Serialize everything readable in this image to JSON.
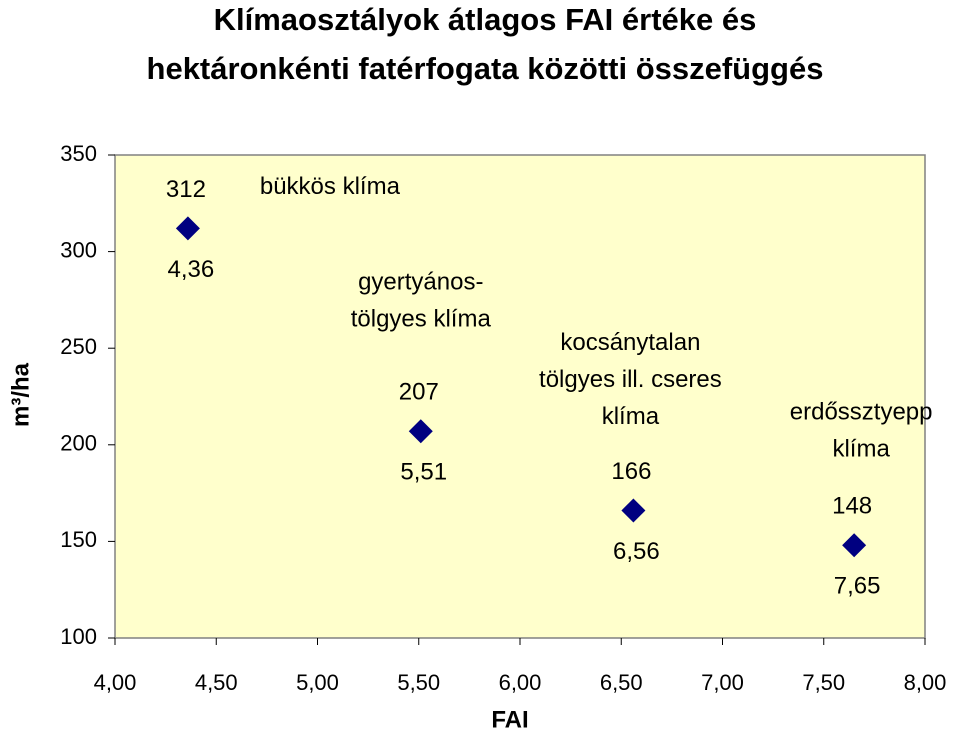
{
  "chart_data": {
    "type": "scatter",
    "title": [
      "Klímaosztályok átlagos FAI értéke és",
      "hektáronkénti fatérfogata közötti összefüggés"
    ],
    "x_label": "FAI",
    "y_label": "m³/ha",
    "x": [
      4.36,
      5.51,
      6.56,
      7.65
    ],
    "values": [
      312,
      207,
      166,
      148
    ],
    "x_labels": [
      "4,36",
      "5,51",
      "6,56",
      "7,65"
    ],
    "point_labels": [
      [
        "bükkös klíma"
      ],
      [
        "gyertyános-",
        "tölgyes klíma"
      ],
      [
        "kocsánytalan",
        "tölgyes ill. cseres",
        "klíma"
      ],
      [
        "erdőssztyepp",
        "klíma"
      ]
    ],
    "color": "#000080",
    "xlim": [
      4,
      8
    ],
    "xticks": [
      {
        "value": 4,
        "label": "4,00"
      },
      {
        "value": 4.5,
        "label": "4,50"
      },
      {
        "value": 5,
        "label": "5,00"
      },
      {
        "value": 5.5,
        "label": "5,50"
      },
      {
        "value": 6,
        "label": "6,00"
      },
      {
        "value": 6.5,
        "label": "6,50"
      },
      {
        "value": 7,
        "label": "7,00"
      },
      {
        "value": 7.5,
        "label": "7,50"
      },
      {
        "value": 8,
        "label": "8,00"
      }
    ],
    "ylim": [
      100,
      350
    ],
    "yticks": [
      100,
      150,
      200,
      250,
      300,
      350
    ]
  }
}
